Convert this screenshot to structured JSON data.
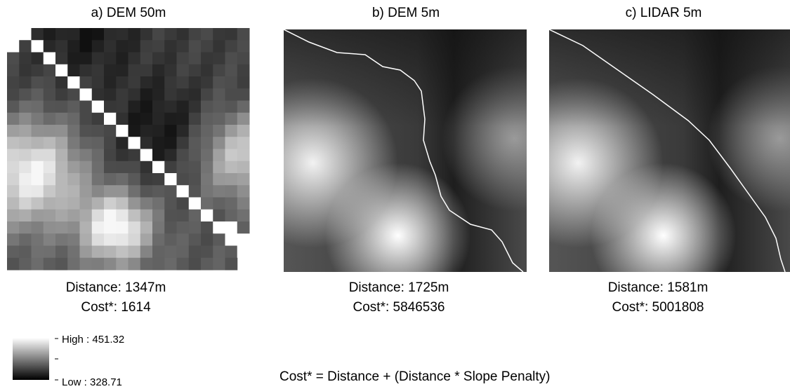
{
  "panels": [
    {
      "title": "a) DEM 50m",
      "distance": "Distance: 1347m",
      "cost": "Cost*: 1614"
    },
    {
      "title": "b) DEM 5m",
      "distance": "Distance: 1725m",
      "cost": "Cost*: 5846536"
    },
    {
      "title": "c) LIDAR 5m",
      "distance": "Distance: 1581m",
      "cost": "Cost*: 5001808"
    }
  ],
  "legend": {
    "high": "High : 451.32",
    "low": "Low : 328.71"
  },
  "formula": "Cost* = Distance + (Distance * Slope Penalty)"
}
